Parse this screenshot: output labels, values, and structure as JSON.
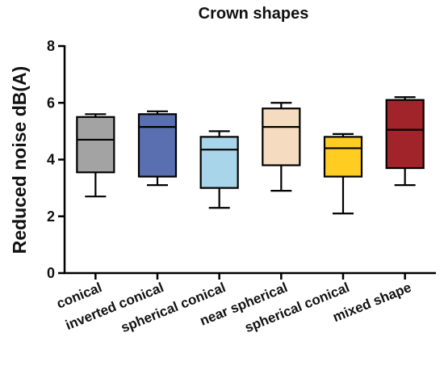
{
  "chart_data": {
    "type": "box",
    "title": "Crown shapes",
    "xlabel": "",
    "ylabel": "Reduced noise dB(A)",
    "ylim": [
      0,
      8
    ],
    "yticks": [
      0,
      2,
      4,
      6,
      8
    ],
    "grid": false,
    "categories": [
      "conical",
      "inverted conical",
      "spherical conical",
      "near spherical",
      "spherical conical",
      "mixed shape"
    ],
    "series": [
      {
        "category": "conical",
        "min": 2.7,
        "q1": 3.55,
        "median": 4.7,
        "q3": 5.5,
        "max": 5.6,
        "color": "#a3a3a3"
      },
      {
        "category": "inverted conical",
        "min": 3.1,
        "q1": 3.4,
        "median": 5.15,
        "q3": 5.6,
        "max": 5.7,
        "color": "#5a6fb0"
      },
      {
        "category": "spherical conical",
        "min": 2.3,
        "q1": 3.0,
        "median": 4.35,
        "q3": 4.8,
        "max": 5.0,
        "color": "#a9d5ea"
      },
      {
        "category": "near spherical",
        "min": 2.9,
        "q1": 3.8,
        "median": 5.15,
        "q3": 5.8,
        "max": 6.0,
        "color": "#f5dcc0"
      },
      {
        "category": "spherical conical",
        "min": 2.1,
        "q1": 3.4,
        "median": 4.4,
        "q3": 4.8,
        "max": 4.9,
        "color": "#ffcc22"
      },
      {
        "category": "mixed shape",
        "min": 3.1,
        "q1": 3.7,
        "median": 5.05,
        "q3": 6.1,
        "max": 6.2,
        "color": "#a0242a"
      }
    ]
  }
}
